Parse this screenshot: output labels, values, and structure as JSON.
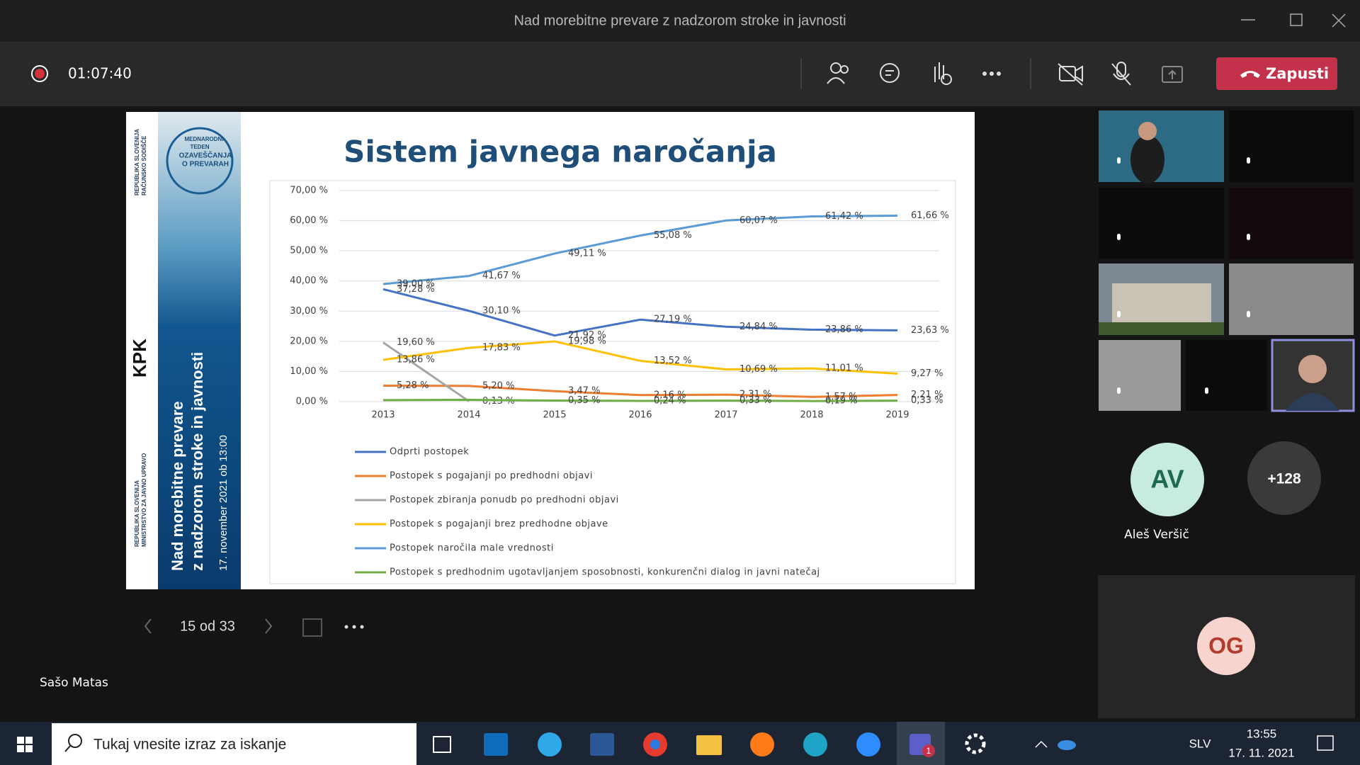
{
  "window": {
    "title": "Nad morebitne prevare z nadzorom stroke in javnosti"
  },
  "toolbar": {
    "timer": "01:07:40",
    "leave": "Zapusti"
  },
  "slide": {
    "sidebar": {
      "org1": [
        "REPUBLIKA SLOVENIJA",
        "RAČUNSKO SODIŠČE"
      ],
      "org2": "KPK",
      "org3": [
        "REPUBLIKA SLOVENIJA",
        "MINISTRSTVO ZA JAVNO UPRAVO"
      ],
      "logo": [
        "MEDNARODNI",
        "TEDEN",
        "OZAVEŠČANJA",
        "O PREVARAH"
      ],
      "event": [
        "Nad morebitne prevare",
        "z nadzorom stroke in javnosti"
      ],
      "date": "17. november 2021 ob 13:00"
    },
    "chart_data": {
      "type": "line",
      "title": "Sistem javnega naročanja",
      "categories": [
        "2013",
        "2014",
        "2015",
        "2016",
        "2017",
        "2018",
        "2019"
      ],
      "ylim": [
        0,
        70
      ],
      "yticks": [
        {
          "value": 0,
          "label": "0,00 %"
        },
        {
          "value": 10,
          "label": "10,00 %"
        },
        {
          "value": 20,
          "label": "20,00 %"
        },
        {
          "value": 30,
          "label": "30,00 %"
        },
        {
          "value": 40,
          "label": "40,00 %"
        },
        {
          "value": 50,
          "label": "50,00 %"
        },
        {
          "value": 60,
          "label": "60,00 %"
        },
        {
          "value": 70,
          "label": "70,00 %"
        }
      ],
      "grid": true,
      "legend": "bottom",
      "series": [
        {
          "name": "Odprti postopek",
          "color": "#4472c4",
          "values": [
            37.28,
            30.1,
            21.92,
            27.19,
            24.84,
            23.86,
            23.63
          ],
          "value_labels": [
            "37,28 %",
            "30,10 %",
            "21,92 %",
            "27,19 %",
            "24,84 %",
            "23,86 %",
            "23,63 %"
          ]
        },
        {
          "name": "Postopek s pogajanji po predhodni objavi",
          "color": "#ed7d31",
          "values": [
            5.28,
            5.2,
            3.47,
            2.16,
            2.31,
            1.57,
            2.21
          ],
          "value_labels": [
            "5,28 %",
            "5,20 %",
            "3,47 %",
            "2,16 %",
            "2,31 %",
            "1,57 %",
            "2,21 %"
          ]
        },
        {
          "name": "Postopek zbiranja ponudb po predhodni objavi",
          "color": "#a5a5a5",
          "values": [
            19.6,
            0.13,
            null,
            null,
            null,
            null,
            null
          ],
          "value_labels": [
            "19,60 %",
            "0,13 %",
            null,
            null,
            null,
            null,
            null
          ]
        },
        {
          "name": "Postopek s pogajanji brez predhodne objave",
          "color": "#ffc000",
          "values": [
            13.86,
            17.83,
            19.98,
            13.52,
            10.69,
            11.01,
            9.27
          ],
          "value_labels": [
            "13,86 %",
            "17,83 %",
            "19,98 %",
            "13,52 %",
            "10,69 %",
            "11,01 %",
            "9,27 %"
          ]
        },
        {
          "name": "Postopek naročila male vrednosti",
          "color": "#5b9bd5",
          "values": [
            39.0,
            41.67,
            49.11,
            55.08,
            60.07,
            61.42,
            61.66
          ],
          "value_labels": [
            "39,00 %",
            "41,67 %",
            "49,11 %",
            "55,08 %",
            "60,07 %",
            "61,42 %",
            "61,66 %"
          ]
        },
        {
          "name": "Postopek s predhodnim ugotavljanjem sposobnosti, konkurenčni dialog in javni natečaj",
          "color": "#70ad47",
          "values": [
            0.5,
            0.6,
            0.35,
            0.24,
            0.33,
            0.19,
            0.33
          ],
          "value_labels": [
            null,
            null,
            "0,35 %",
            "0,24 %",
            "0,33 %",
            "0,19 %",
            "0,33 %"
          ]
        }
      ]
    }
  },
  "presentation": {
    "page": "15 od 33",
    "presenter": "Sašo Matas"
  },
  "participants": {
    "av_initials": "AV",
    "av_name": "Aleš Veršič",
    "more": "+128",
    "og_initials": "OG"
  },
  "taskbar": {
    "search": "Tukaj vnesite izraz za iskanje",
    "teams_badge": "1",
    "language": "SLV",
    "time": "13:55",
    "date": "17. 11. 2021"
  }
}
